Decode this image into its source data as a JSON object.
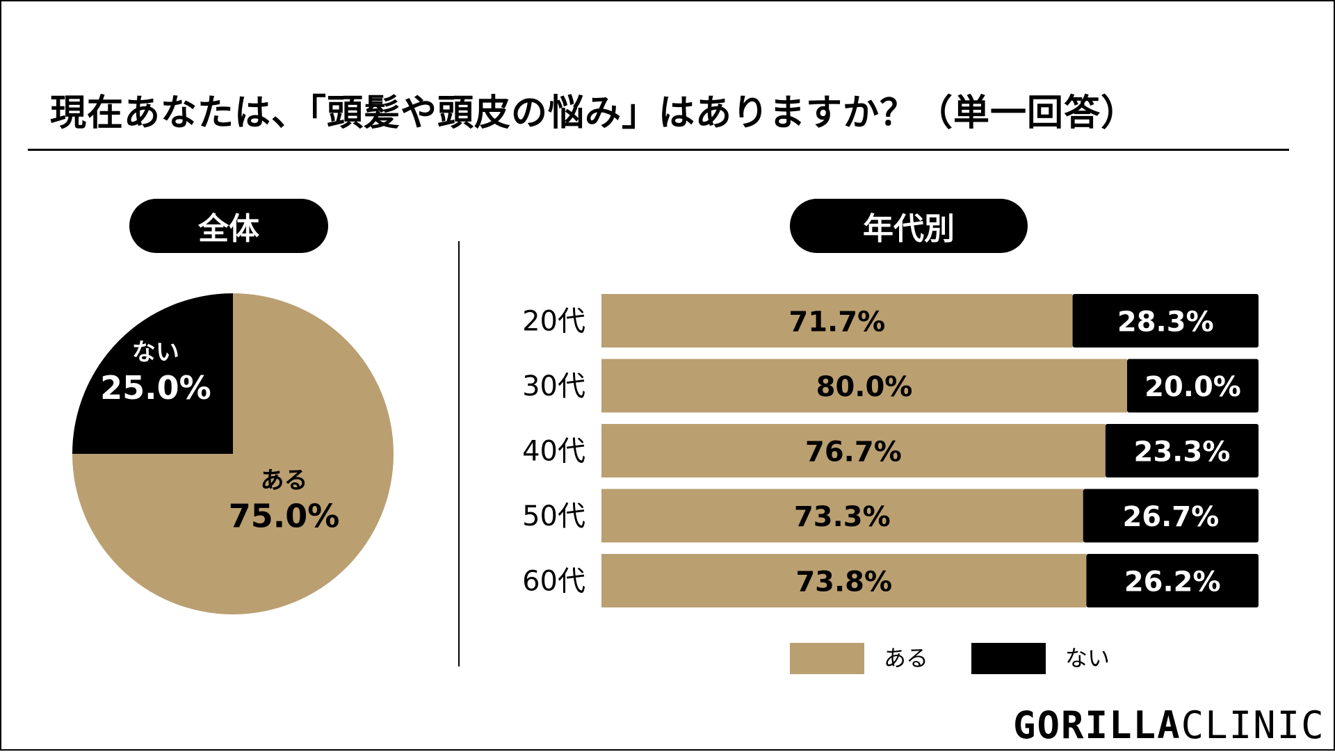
{
  "title": "現在あなたは、「頭髪や頭皮の悩み」はありますか？（単一回答）",
  "logo": {
    "bold": "GORILLA",
    "light": "CLINIC"
  },
  "colors": {
    "aru": "#BA9F71",
    "nai": "#000000"
  },
  "chart_data": [
    {
      "type": "pie",
      "header": "全体",
      "slices": [
        {
          "label": "ある",
          "value": 75.0,
          "display": "75.0%",
          "color": "#BA9F71"
        },
        {
          "label": "ない",
          "value": 25.0,
          "display": "25.0%",
          "color": "#000000"
        }
      ]
    },
    {
      "type": "bar",
      "stacked": true,
      "orientation": "horizontal",
      "header": "年代別",
      "categories": [
        "20代",
        "30代",
        "40代",
        "50代",
        "60代"
      ],
      "series": [
        {
          "name": "ある",
          "color": "#BA9F71",
          "values": [
            71.7,
            80.0,
            76.7,
            73.3,
            73.8
          ]
        },
        {
          "name": "ない",
          "color": "#000000",
          "values": [
            28.3,
            20.0,
            23.3,
            26.7,
            26.2
          ]
        }
      ],
      "xlim": [
        0,
        100
      ],
      "legend": "bottom"
    }
  ]
}
